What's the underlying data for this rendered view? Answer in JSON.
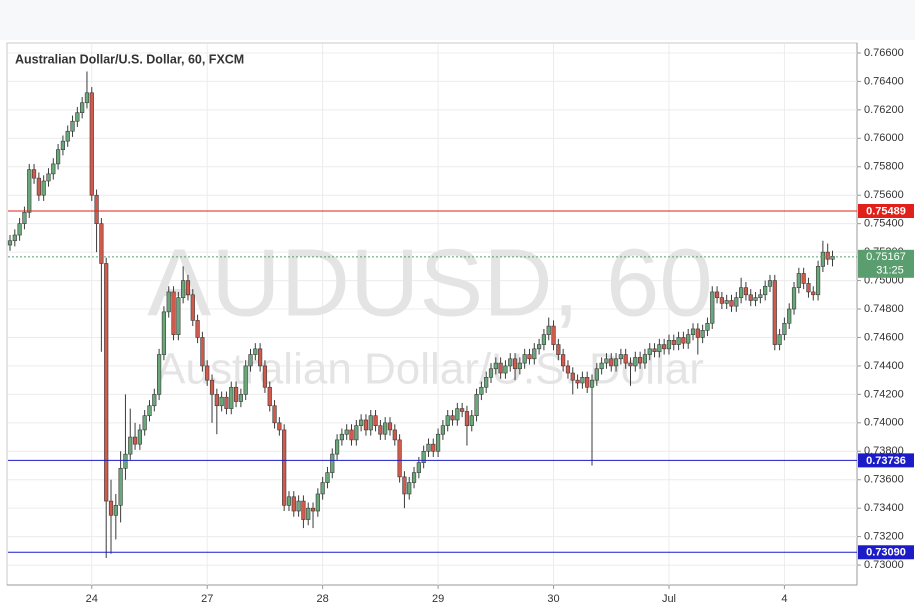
{
  "chart_data": {
    "type": "candlestick",
    "title": "Australian Dollar/U.S. Dollar, 60, FXCM",
    "watermark": {
      "symbol": "AUDUSD, 60",
      "name": "Australian Dollar/U.S. Dollar"
    },
    "categories": [
      null,
      null,
      null,
      null,
      null,
      null,
      null,
      null,
      null,
      null,
      null,
      null,
      null,
      null,
      null,
      null,
      null,
      "24",
      null,
      null,
      null,
      null,
      null,
      null,
      null,
      null,
      null,
      null,
      null,
      null,
      null,
      null,
      null,
      null,
      null,
      null,
      null,
      null,
      null,
      null,
      null,
      "27",
      null,
      null,
      null,
      null,
      null,
      null,
      null,
      null,
      null,
      null,
      null,
      null,
      null,
      null,
      null,
      null,
      null,
      null,
      null,
      null,
      null,
      null,
      null,
      "28",
      null,
      null,
      null,
      null,
      null,
      null,
      null,
      null,
      null,
      null,
      null,
      null,
      null,
      null,
      null,
      null,
      null,
      null,
      null,
      null,
      null,
      null,
      null,
      "29",
      null,
      null,
      null,
      null,
      null,
      null,
      null,
      null,
      null,
      null,
      null,
      null,
      null,
      null,
      null,
      null,
      null,
      null,
      null,
      null,
      null,
      null,
      null,
      "30",
      null,
      null,
      null,
      null,
      null,
      null,
      null,
      null,
      null,
      null,
      null,
      null,
      null,
      null,
      null,
      null,
      null,
      null,
      null,
      null,
      null,
      null,
      null,
      "Jul",
      null,
      null,
      null,
      null,
      null,
      null,
      null,
      null,
      null,
      null,
      null,
      null,
      null,
      null,
      null,
      null,
      null,
      null,
      null,
      null,
      null,
      null,
      null,
      "4",
      null,
      null,
      null,
      null,
      null,
      null,
      null,
      null,
      null,
      null
    ],
    "open": [
      0.7525,
      0.7528,
      0.7532,
      0.754,
      0.7548,
      0.7578,
      0.7572,
      0.756,
      0.757,
      0.7575,
      0.7582,
      0.7592,
      0.7598,
      0.7605,
      0.7612,
      0.7618,
      0.7625,
      0.7632,
      0.756,
      0.754,
      0.7512,
      0.7345,
      0.7335,
      0.7342,
      0.7368,
      0.7378,
      0.739,
      0.7385,
      0.7395,
      0.7405,
      0.7412,
      0.742,
      0.7448,
      0.7478,
      0.7492,
      0.7462,
      0.7488,
      0.75,
      0.749,
      0.7472,
      0.746,
      0.744,
      0.743,
      0.742,
      0.7412,
      0.7418,
      0.741,
      0.7425,
      0.7415,
      0.742,
      0.744,
      0.7448,
      0.7452,
      0.744,
      0.7425,
      0.7412,
      0.74,
      0.7395,
      0.7342,
      0.7348,
      0.7338,
      0.7345,
      0.7332,
      0.734,
      0.7338,
      0.735,
      0.7358,
      0.7365,
      0.7378,
      0.7388,
      0.7392,
      0.7395,
      0.7388,
      0.7398,
      0.7402,
      0.7395,
      0.7405,
      0.7398,
      0.7392,
      0.74,
      0.7395,
      0.7388,
      0.7362,
      0.735,
      0.7358,
      0.7365,
      0.7372,
      0.738,
      0.7385,
      0.738,
      0.7392,
      0.7398,
      0.7405,
      0.7402,
      0.741,
      0.7408,
      0.7398,
      0.7405,
      0.742,
      0.7425,
      0.7432,
      0.7438,
      0.7442,
      0.7435,
      0.744,
      0.7445,
      0.7438,
      0.7442,
      0.7448,
      0.7445,
      0.7452,
      0.7455,
      0.7462,
      0.7468,
      0.7455,
      0.7448,
      0.744,
      0.7435,
      0.743,
      0.7428,
      0.7432,
      0.7425,
      0.743,
      0.7438,
      0.7442,
      0.7445,
      0.744,
      0.7445,
      0.7448,
      0.7442,
      0.744,
      0.7446,
      0.7442,
      0.7448,
      0.7452,
      0.745,
      0.7455,
      0.7452,
      0.7458,
      0.7455,
      0.746,
      0.7456,
      0.7462,
      0.7466,
      0.746,
      0.7465,
      0.747,
      0.7492,
      0.7488,
      0.7484,
      0.7486,
      0.7482,
      0.7488,
      0.7495,
      0.749,
      0.7486,
      0.7488,
      0.749,
      0.7496,
      0.75,
      0.7455,
      0.7462,
      0.747,
      0.748,
      0.7495,
      0.7505,
      0.7498,
      0.7492,
      0.749,
      0.751,
      0.752,
      0.7515
    ],
    "high": [
      0.7532,
      0.7536,
      0.7544,
      0.7552,
      0.7582,
      0.7582,
      0.7576,
      0.7574,
      0.7579,
      0.7586,
      0.7596,
      0.7602,
      0.7609,
      0.7616,
      0.7622,
      0.7629,
      0.7647,
      0.7636,
      0.7564,
      0.7544,
      0.7516,
      0.736,
      0.735,
      0.738,
      0.742,
      0.741,
      0.74,
      0.7399,
      0.7409,
      0.7416,
      0.7424,
      0.7452,
      0.7482,
      0.7496,
      0.7496,
      0.7492,
      0.751,
      0.7504,
      0.7494,
      0.7476,
      0.7464,
      0.7444,
      0.7434,
      0.7424,
      0.7422,
      0.7422,
      0.7429,
      0.7429,
      0.7424,
      0.7444,
      0.7452,
      0.7456,
      0.7456,
      0.7444,
      0.7429,
      0.7416,
      0.7404,
      0.7399,
      0.7352,
      0.7352,
      0.7349,
      0.7349,
      0.7344,
      0.7344,
      0.7354,
      0.7362,
      0.7369,
      0.7382,
      0.7392,
      0.7396,
      0.7399,
      0.7399,
      0.7402,
      0.7406,
      0.7406,
      0.7409,
      0.7409,
      0.7402,
      0.7404,
      0.7404,
      0.7399,
      0.7392,
      0.7366,
      0.7362,
      0.7369,
      0.7376,
      0.7384,
      0.7389,
      0.7389,
      0.7396,
      0.7402,
      0.7409,
      0.7409,
      0.7414,
      0.7414,
      0.7412,
      0.7409,
      0.7424,
      0.7429,
      0.7436,
      0.7442,
      0.7446,
      0.7446,
      0.7444,
      0.7449,
      0.7449,
      0.7446,
      0.7452,
      0.7452,
      0.7456,
      0.7459,
      0.7466,
      0.7474,
      0.7472,
      0.7459,
      0.7452,
      0.7444,
      0.7439,
      0.7434,
      0.7436,
      0.7436,
      0.7434,
      0.7442,
      0.7446,
      0.7449,
      0.7449,
      0.7449,
      0.7452,
      0.7452,
      0.7446,
      0.745,
      0.745,
      0.7452,
      0.7456,
      0.7456,
      0.7459,
      0.7459,
      0.7462,
      0.7462,
      0.7464,
      0.7464,
      0.7466,
      0.747,
      0.747,
      0.7469,
      0.7474,
      0.7496,
      0.7496,
      0.7492,
      0.749,
      0.749,
      0.7492,
      0.7502,
      0.7499,
      0.7494,
      0.7492,
      0.7494,
      0.75,
      0.7504,
      0.7504,
      0.7466,
      0.7474,
      0.7484,
      0.7499,
      0.7509,
      0.7509,
      0.7502,
      0.7496,
      0.7514,
      0.7528,
      0.7526,
      0.7521
    ],
    "low": [
      0.7521,
      0.7524,
      0.7528,
      0.7536,
      0.7544,
      0.7568,
      0.7556,
      0.7556,
      0.7566,
      0.7571,
      0.7578,
      0.7588,
      0.7594,
      0.7601,
      0.7608,
      0.7614,
      0.7621,
      0.7556,
      0.752,
      0.745,
      0.7305,
      0.7308,
      0.7318,
      0.733,
      0.736,
      0.7374,
      0.7381,
      0.7381,
      0.7391,
      0.7401,
      0.7408,
      0.7416,
      0.7444,
      0.7474,
      0.7458,
      0.7458,
      0.7484,
      0.7486,
      0.7468,
      0.7456,
      0.7436,
      0.7426,
      0.74,
      0.7392,
      0.7408,
      0.7406,
      0.7406,
      0.7411,
      0.7411,
      0.7416,
      0.7436,
      0.7444,
      0.7436,
      0.7421,
      0.7408,
      0.7396,
      0.7391,
      0.7338,
      0.7338,
      0.7334,
      0.7334,
      0.7326,
      0.7328,
      0.7326,
      0.7334,
      0.7346,
      0.7354,
      0.7361,
      0.7374,
      0.7384,
      0.7388,
      0.7384,
      0.7384,
      0.7394,
      0.7391,
      0.7391,
      0.7394,
      0.7388,
      0.7388,
      0.7391,
      0.7384,
      0.7358,
      0.734,
      0.7346,
      0.7354,
      0.7361,
      0.7368,
      0.7376,
      0.7376,
      0.7376,
      0.7388,
      0.7394,
      0.7398,
      0.7398,
      0.7404,
      0.7384,
      0.7394,
      0.7401,
      0.7416,
      0.7421,
      0.7428,
      0.7434,
      0.7431,
      0.7431,
      0.7436,
      0.743,
      0.7434,
      0.7438,
      0.7441,
      0.7441,
      0.7448,
      0.7451,
      0.7458,
      0.7451,
      0.7444,
      0.7436,
      0.7431,
      0.742,
      0.7424,
      0.7424,
      0.7421,
      0.737,
      0.7426,
      0.7434,
      0.7438,
      0.7436,
      0.7436,
      0.7441,
      0.7438,
      0.7426,
      0.7436,
      0.7438,
      0.7438,
      0.7444,
      0.7446,
      0.7446,
      0.7448,
      0.7448,
      0.7451,
      0.7451,
      0.7452,
      0.7452,
      0.7458,
      0.7448,
      0.7456,
      0.7461,
      0.7466,
      0.7484,
      0.748,
      0.748,
      0.7478,
      0.7478,
      0.7484,
      0.7486,
      0.7482,
      0.7482,
      0.7484,
      0.7486,
      0.7492,
      0.7451,
      0.7451,
      0.7458,
      0.7466,
      0.7476,
      0.7491,
      0.7494,
      0.7488,
      0.7486,
      0.7486,
      0.7506,
      0.7511,
      0.751
    ],
    "close": [
      0.7528,
      0.7532,
      0.754,
      0.7548,
      0.7578,
      0.7572,
      0.756,
      0.757,
      0.7575,
      0.7582,
      0.7592,
      0.7598,
      0.7605,
      0.7612,
      0.7618,
      0.7625,
      0.7632,
      0.756,
      0.754,
      0.7512,
      0.7345,
      0.7335,
      0.7342,
      0.7368,
      0.7378,
      0.739,
      0.7385,
      0.7395,
      0.7405,
      0.7412,
      0.742,
      0.7448,
      0.7478,
      0.7492,
      0.7462,
      0.7488,
      0.75,
      0.749,
      0.7472,
      0.746,
      0.744,
      0.743,
      0.742,
      0.7412,
      0.7418,
      0.741,
      0.7425,
      0.7415,
      0.742,
      0.744,
      0.7448,
      0.7452,
      0.744,
      0.7425,
      0.7412,
      0.74,
      0.7395,
      0.7342,
      0.7348,
      0.7338,
      0.7345,
      0.7332,
      0.734,
      0.7338,
      0.735,
      0.7358,
      0.7365,
      0.7378,
      0.7388,
      0.7392,
      0.7395,
      0.7388,
      0.7398,
      0.7402,
      0.7395,
      0.7405,
      0.7398,
      0.7392,
      0.74,
      0.7395,
      0.7388,
      0.7362,
      0.735,
      0.7358,
      0.7365,
      0.7372,
      0.738,
      0.7385,
      0.738,
      0.7392,
      0.7398,
      0.7405,
      0.7402,
      0.741,
      0.7408,
      0.7398,
      0.7405,
      0.742,
      0.7425,
      0.7432,
      0.7438,
      0.7442,
      0.7435,
      0.744,
      0.7445,
      0.7438,
      0.7442,
      0.7448,
      0.7445,
      0.7452,
      0.7455,
      0.7462,
      0.7468,
      0.7455,
      0.7448,
      0.744,
      0.7435,
      0.743,
      0.7428,
      0.7432,
      0.7425,
      0.743,
      0.7438,
      0.7442,
      0.7445,
      0.744,
      0.7445,
      0.7448,
      0.7442,
      0.744,
      0.7446,
      0.7442,
      0.7448,
      0.7452,
      0.745,
      0.7455,
      0.7452,
      0.7458,
      0.7455,
      0.746,
      0.7456,
      0.7462,
      0.7466,
      0.746,
      0.7465,
      0.747,
      0.7492,
      0.7488,
      0.7484,
      0.7486,
      0.7482,
      0.7488,
      0.7495,
      0.749,
      0.7486,
      0.7488,
      0.749,
      0.7496,
      0.75,
      0.7455,
      0.7462,
      0.747,
      0.748,
      0.7495,
      0.7505,
      0.7498,
      0.7492,
      0.749,
      0.751,
      0.752,
      0.7515,
      0.7517
    ],
    "up_color": "#6aa77a",
    "down_color": "#d05a4c",
    "ylim": [
      0.7286,
      0.7667
    ],
    "yticks": [
      {
        "value": 0.73,
        "label": "0.73000"
      },
      {
        "value": 0.732,
        "label": "0.73200"
      },
      {
        "value": 0.734,
        "label": "0.73400"
      },
      {
        "value": 0.736,
        "label": "0.73600"
      },
      {
        "value": 0.738,
        "label": "0.73800"
      },
      {
        "value": 0.74,
        "label": "0.74000"
      },
      {
        "value": 0.742,
        "label": "0.74200"
      },
      {
        "value": 0.744,
        "label": "0.74400"
      },
      {
        "value": 0.746,
        "label": "0.74600"
      },
      {
        "value": 0.748,
        "label": "0.74800"
      },
      {
        "value": 0.75,
        "label": "0.75000"
      },
      {
        "value": 0.752,
        "label": "0.75200"
      },
      {
        "value": 0.754,
        "label": "0.75400"
      },
      {
        "value": 0.756,
        "label": "0.75600"
      },
      {
        "value": 0.758,
        "label": "0.75800"
      },
      {
        "value": 0.76,
        "label": "0.76000"
      },
      {
        "value": 0.762,
        "label": "0.76200"
      },
      {
        "value": 0.764,
        "label": "0.76400"
      },
      {
        "value": 0.766,
        "label": "0.76600"
      }
    ],
    "grid": true,
    "levels": [
      {
        "value": 0.75489,
        "label": "0.75489",
        "color": "#e0201b"
      },
      {
        "value": 0.73736,
        "label": "0.73736",
        "color": "#1b1bc8"
      },
      {
        "value": 0.7309,
        "label": "0.73090",
        "color": "#1b1bc8"
      }
    ],
    "last_price": {
      "value": 0.75167,
      "label": "0.75167",
      "color": "#5a9e6f",
      "countdown": "31:25"
    }
  }
}
